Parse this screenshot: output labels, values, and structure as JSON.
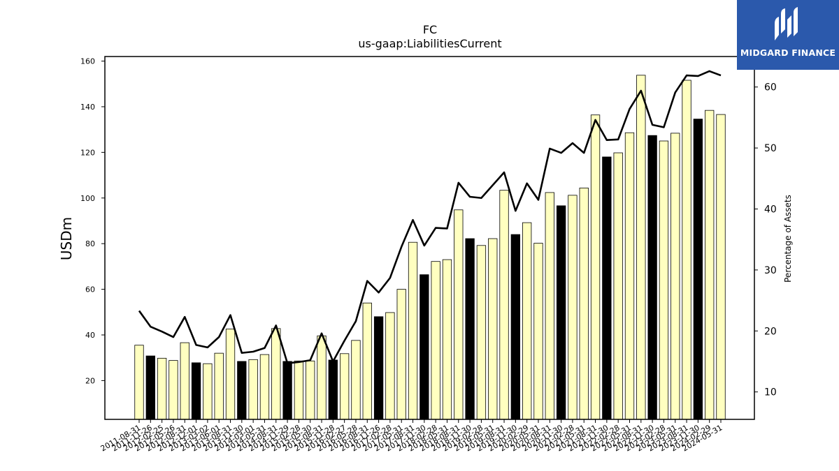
{
  "chart_data": {
    "type": "bar+line",
    "title": "FC",
    "subtitle": "us-gaap:LiabilitiesCurrent",
    "ylabel": "USDm",
    "y2label": "Percentage of Assets",
    "ylim": [
      3,
      162
    ],
    "y2lim": [
      5.5,
      65
    ],
    "yticks": [
      20,
      40,
      60,
      80,
      100,
      120,
      140,
      160
    ],
    "y2ticks": [
      10,
      20,
      30,
      40,
      50,
      60
    ],
    "colors": {
      "bar_regular": "#ffffc0",
      "bar_annual": "#000000",
      "line": "#000000",
      "edge": "#000000"
    },
    "categories": [
      "2011-08-31",
      "2011-11-26",
      "2012-02-25",
      "2012-05-26",
      "2012-08-31",
      "2012-12-01",
      "2013-03-02",
      "2013-06-01",
      "2013-08-31",
      "2013-11-30",
      "2014-03-01",
      "2014-05-31",
      "2014-08-31",
      "2014-11-29",
      "2015-02-28",
      "2015-05-30",
      "2015-08-31",
      "2015-11-28",
      "2016-02-27",
      "2016-05-28",
      "2016-08-31",
      "2016-11-26",
      "2017-02-28",
      "2017-05-31",
      "2017-08-31",
      "2017-11-30",
      "2018-02-28",
      "2018-05-31",
      "2018-08-31",
      "2018-11-30",
      "2019-02-28",
      "2019-05-31",
      "2019-08-31",
      "2019-11-30",
      "2020-02-29",
      "2020-05-31",
      "2020-08-31",
      "2020-11-30",
      "2021-02-28",
      "2021-05-31",
      "2021-08-31",
      "2021-11-30",
      "2022-02-28",
      "2022-05-31",
      "2022-08-31",
      "2022-11-30",
      "2023-02-28",
      "2023-05-31",
      "2023-08-31",
      "2023-11-30",
      "2024-02-29",
      "2024-05-31"
    ],
    "series": [
      {
        "values": [
          35.5,
          30.8,
          29.8,
          28.8,
          36.6,
          27.8,
          27.4,
          32.0,
          42.6,
          28.4,
          29.2,
          31.4,
          42.8,
          28.4,
          28.6,
          28.6,
          39.6,
          29.0,
          31.8,
          37.6,
          54.0,
          48.0,
          49.8,
          60.0,
          80.6,
          66.4,
          72.2,
          73.0,
          94.8,
          82.2,
          79.2,
          82.2,
          103.4,
          84.0,
          89.2,
          80.2,
          102.4,
          96.6,
          101.2,
          104.4,
          136.4,
          118.0,
          119.8,
          128.6,
          153.8,
          127.4,
          125.0,
          128.4,
          151.6,
          134.6,
          138.4,
          136.6
        ]
      },
      {
        "values": [
          23.3,
          20.7,
          19.9,
          19.0,
          22.3,
          17.7,
          17.3,
          19.0,
          22.6,
          16.4,
          16.6,
          17.2,
          20.9,
          14.7,
          14.9,
          15.2,
          19.6,
          15.0,
          18.4,
          21.6,
          28.2,
          26.3,
          28.7,
          33.8,
          38.2,
          34.0,
          36.9,
          36.8,
          44.3,
          42.0,
          41.8,
          43.9,
          46.0,
          39.7,
          44.2,
          41.5,
          49.9,
          49.2,
          50.8,
          49.2,
          54.6,
          51.3,
          51.4,
          56.4,
          59.4,
          53.8,
          53.4,
          59.1,
          61.9,
          61.8,
          62.6,
          61.9
        ]
      }
    ],
    "annual_flags": [
      0,
      1,
      0,
      0,
      0,
      1,
      0,
      0,
      0,
      1,
      0,
      0,
      0,
      1,
      0,
      0,
      0,
      1,
      0,
      0,
      0,
      1,
      0,
      0,
      0,
      1,
      0,
      0,
      0,
      1,
      0,
      0,
      0,
      1,
      0,
      0,
      0,
      1,
      0,
      0,
      0,
      1,
      0,
      0,
      0,
      1,
      0,
      0,
      0,
      1,
      0,
      0
    ],
    "grid": false,
    "legend": "none"
  },
  "logo": {
    "text": "MIDGARD FINANCE"
  }
}
